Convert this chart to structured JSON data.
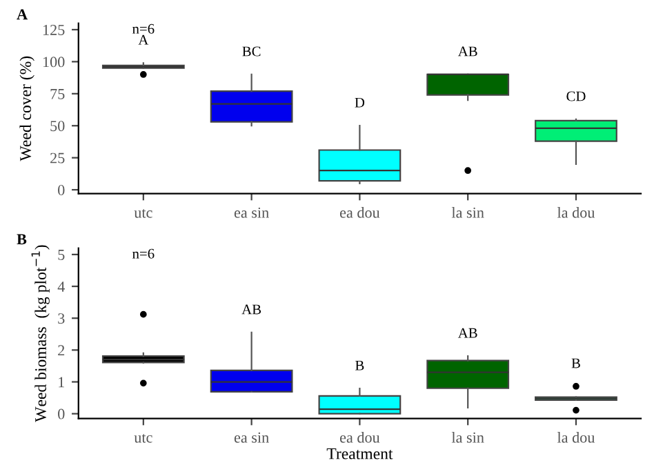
{
  "chart_data": [
    {
      "type": "box",
      "title": "A",
      "ylabel": "Weed cover (%)",
      "categories": [
        "utc",
        "ea sin",
        "ea dou",
        "la sin",
        "la dou"
      ],
      "colors": [
        "#000000",
        "#0000ee",
        "#00ffff",
        "#006400",
        "#00ee76"
      ],
      "boxes": [
        {
          "low": 95,
          "q1": 95,
          "median": 96,
          "q3": 97,
          "high": 99,
          "outliers": [
            90
          ]
        },
        {
          "low": 50,
          "q1": 53,
          "median": 67,
          "q3": 77,
          "high": 90
        },
        {
          "low": 5,
          "q1": 7,
          "median": 15,
          "q3": 31,
          "high": 50
        },
        {
          "low": 70,
          "q1": 74,
          "median": 90,
          "q3": 90,
          "high": 90,
          "outliers": [
            15
          ]
        },
        {
          "low": 20,
          "q1": 38,
          "median": 48,
          "q3": 54,
          "high": 55
        }
      ],
      "ylim": [
        -3,
        130
      ],
      "yticks": [
        0,
        25,
        50,
        75,
        100,
        125
      ],
      "grid": false,
      "annotations": [
        "n=6",
        "A",
        "BC",
        "D",
        "AB",
        "CD"
      ]
    },
    {
      "type": "box",
      "title": "B",
      "ylabel": "Weed biomass  (kg plot$^{−1}$)",
      "xlabel": "Treatment",
      "categories": [
        "utc",
        "ea sin",
        "ea dou",
        "la sin",
        "la dou"
      ],
      "colors": [
        "#000000",
        "#0000ee",
        "#00ffff",
        "#006400",
        "#2eb872"
      ],
      "boxes": [
        {
          "low": 1.6,
          "q1": 1.61,
          "median": 1.7,
          "q3": 1.81,
          "high": 1.9,
          "outliers": [
            3.12,
            0.96
          ]
        },
        {
          "low": 0.69,
          "q1": 0.69,
          "median": 1.0,
          "q3": 1.36,
          "high": 2.55
        },
        {
          "low": 0,
          "q1": 0,
          "median": 0.14,
          "q3": 0.56,
          "high": 0.79
        },
        {
          "low": 0.19,
          "q1": 0.8,
          "median": 1.3,
          "q3": 1.67,
          "high": 1.81
        },
        {
          "low": 0.43,
          "q1": 0.43,
          "median": 0.48,
          "q3": 0.52,
          "high": 0.52,
          "outliers": [
            0.86,
            0.11
          ]
        }
      ],
      "ylim": [
        -0.15,
        5.2
      ],
      "yticks": [
        0,
        1,
        2,
        3,
        4,
        5
      ],
      "grid": false,
      "annotations": [
        "n=6",
        "AB",
        "B",
        "AB",
        "B"
      ]
    }
  ]
}
